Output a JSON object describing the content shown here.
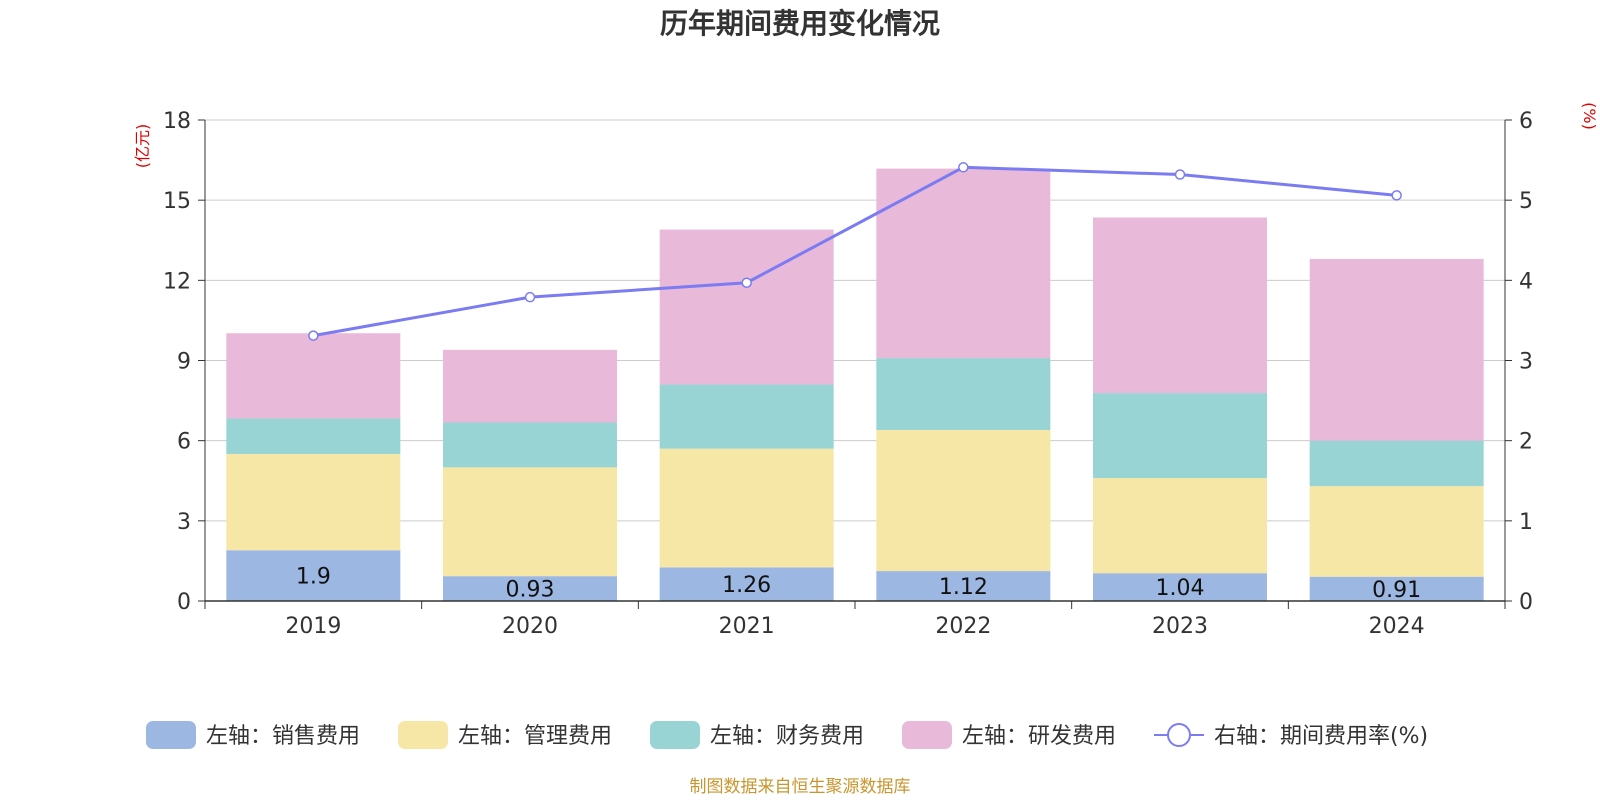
{
  "chart_data": {
    "type": "bar",
    "title": "历年期间费用变化情况",
    "categories": [
      "2019",
      "2020",
      "2021",
      "2022",
      "2023",
      "2024"
    ],
    "series": [
      {
        "name": "左轴：销售费用",
        "axis": "left",
        "color": "#9cb8e2",
        "values": [
          1.9,
          0.93,
          1.26,
          1.12,
          1.04,
          0.91
        ],
        "show_labels": true
      },
      {
        "name": "左轴：管理费用",
        "axis": "left",
        "color": "#f7e7a7",
        "values": [
          3.6,
          4.07,
          4.44,
          5.28,
          3.56,
          3.39
        ],
        "show_labels": false
      },
      {
        "name": "左轴：财务费用",
        "axis": "left",
        "color": "#98d4d4",
        "values": [
          1.33,
          1.68,
          2.4,
          2.69,
          3.18,
          1.7
        ],
        "show_labels": false
      },
      {
        "name": "左轴：研发费用",
        "axis": "left",
        "color": "#e8b9d9",
        "values": [
          3.19,
          2.72,
          5.8,
          7.09,
          6.57,
          6.8
        ],
        "show_labels": false
      },
      {
        "name": "右轴：期间费用率(%)",
        "axis": "right",
        "type": "line",
        "color": "#7b7cf2",
        "values": [
          3.31,
          3.79,
          3.97,
          5.41,
          5.32,
          5.06
        ]
      }
    ],
    "left_axis": {
      "unit": "(亿元)",
      "ylim": [
        0,
        18
      ],
      "ticks": [
        "0",
        "3",
        "6",
        "9",
        "12",
        "15",
        "18"
      ]
    },
    "right_axis": {
      "unit": "(%)",
      "ylim": [
        0,
        6
      ],
      "ticks": [
        "0",
        "1",
        "2",
        "3",
        "4",
        "5",
        "6"
      ]
    },
    "grid": true,
    "legend_position": "bottom",
    "source_note": "制图数据来自恒生聚源数据库"
  }
}
